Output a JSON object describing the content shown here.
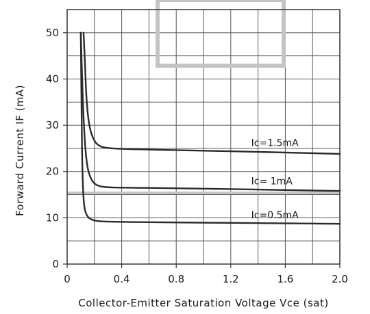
{
  "chart_data": {
    "type": "line",
    "title": "",
    "xlabel": "Collector-Emitter Saturation Voltage Vce (sat)",
    "ylabel": "Forward Current IF (mA)",
    "xlim": [
      0,
      2.0
    ],
    "ylim": [
      0,
      55
    ],
    "grid": true,
    "x_ticks": [
      0,
      0.4,
      0.8,
      1.2,
      1.6,
      2.0
    ],
    "x_tick_labels": [
      "0",
      "0.4",
      "0.8",
      "1.2",
      "1.6",
      "2.0"
    ],
    "y_ticks": [
      0,
      10,
      20,
      30,
      40,
      50
    ],
    "y_tick_labels": [
      "0",
      "10",
      "20",
      "30",
      "40",
      "50"
    ],
    "series": [
      {
        "name": "Ic=1.5mA",
        "x": [
          0.12,
          0.13,
          0.14,
          0.16,
          0.19,
          0.23,
          0.3,
          0.5,
          1.0,
          1.5,
          2.0
        ],
        "y": [
          50,
          44,
          36,
          30,
          27,
          25.5,
          25,
          24.8,
          24.5,
          24.2,
          23.8
        ]
      },
      {
        "name": "Ic=  1mA",
        "x": [
          0.1,
          0.11,
          0.12,
          0.14,
          0.17,
          0.21,
          0.28,
          0.4,
          0.8,
          1.2,
          1.6,
          2.0
        ],
        "y": [
          50,
          40,
          31,
          22,
          18.5,
          17,
          16.6,
          16.5,
          16.4,
          16.2,
          16,
          15.8
        ]
      },
      {
        "name": "Ic=0.5mA",
        "x": [
          0.1,
          0.105,
          0.11,
          0.12,
          0.14,
          0.18,
          0.25,
          0.4,
          0.8,
          1.2,
          1.6,
          2.0
        ],
        "y": [
          50,
          35,
          22,
          13,
          10.5,
          9.5,
          9.2,
          9.1,
          9.0,
          8.9,
          8.8,
          8.7
        ]
      }
    ],
    "colors": {
      "curve": "#2a2a2a",
      "grid": "#555555",
      "highlight": "#c0c0c0"
    }
  }
}
